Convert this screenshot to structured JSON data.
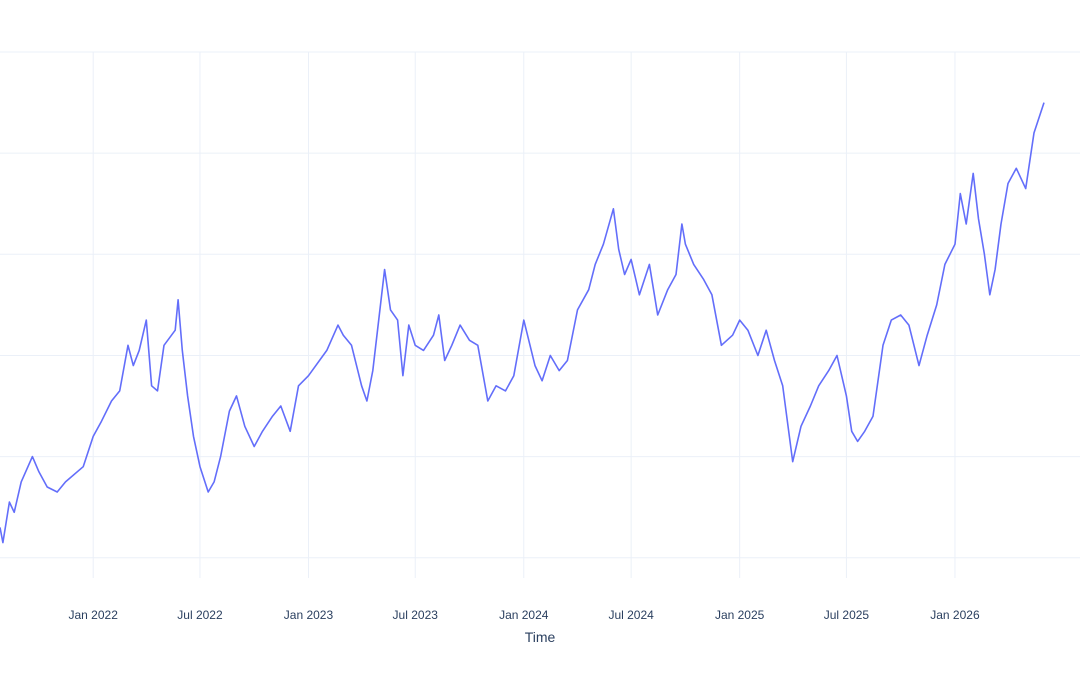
{
  "colors": {
    "background": "#ffffff",
    "grid": "#ebf0f8",
    "line": "#636efa",
    "text": "#2a3f5f"
  },
  "chart_data": {
    "type": "line",
    "title": "",
    "xlabel": "Time",
    "ylabel": "",
    "grid": true,
    "legend": "none",
    "x_tick_labels": [
      "Jan 2022",
      "Jul 2022",
      "Jan 2023",
      "Jul 2023",
      "Jan 2024",
      "Jul 2024",
      "Jan 2025",
      "Jul 2025",
      "Jan 2026"
    ],
    "x_ticks": [
      "2022-01-01",
      "2022-07-01",
      "2023-01-01",
      "2023-07-01",
      "2024-01-01",
      "2024-07-01",
      "2025-01-01",
      "2025-07-01",
      "2026-01-01"
    ],
    "xlim": [
      "2021-07-27",
      "2026-08-01"
    ],
    "ylim": [
      -2,
      50
    ],
    "y_gridlines": [
      0,
      10,
      20,
      30,
      40,
      50
    ],
    "series": [
      {
        "values": [
          [
            "2021-07-27",
            3.0
          ],
          [
            "2021-08-01",
            1.5
          ],
          [
            "2021-08-12",
            5.5
          ],
          [
            "2021-08-20",
            4.5
          ],
          [
            "2021-09-01",
            7.5
          ],
          [
            "2021-09-20",
            10.0
          ],
          [
            "2021-10-01",
            8.5
          ],
          [
            "2021-10-15",
            7.0
          ],
          [
            "2021-11-01",
            6.5
          ],
          [
            "2021-11-15",
            7.5
          ],
          [
            "2021-12-15",
            9.0
          ],
          [
            "2022-01-01",
            12.0
          ],
          [
            "2022-01-15",
            13.5
          ],
          [
            "2022-02-01",
            15.5
          ],
          [
            "2022-02-15",
            16.5
          ],
          [
            "2022-03-01",
            21.0
          ],
          [
            "2022-03-10",
            19.0
          ],
          [
            "2022-03-20",
            20.5
          ],
          [
            "2022-04-01",
            23.5
          ],
          [
            "2022-04-10",
            17.0
          ],
          [
            "2022-04-20",
            16.5
          ],
          [
            "2022-05-01",
            21.0
          ],
          [
            "2022-05-20",
            22.5
          ],
          [
            "2022-05-25",
            25.5
          ],
          [
            "2022-06-01",
            20.5
          ],
          [
            "2022-06-10",
            16.0
          ],
          [
            "2022-06-20",
            12.0
          ],
          [
            "2022-07-01",
            9.0
          ],
          [
            "2022-07-15",
            6.5
          ],
          [
            "2022-07-25",
            7.5
          ],
          [
            "2022-08-05",
            10.0
          ],
          [
            "2022-08-20",
            14.5
          ],
          [
            "2022-09-01",
            16.0
          ],
          [
            "2022-09-15",
            13.0
          ],
          [
            "2022-10-01",
            11.0
          ],
          [
            "2022-10-15",
            12.5
          ],
          [
            "2022-11-01",
            14.0
          ],
          [
            "2022-11-15",
            15.0
          ],
          [
            "2022-12-01",
            12.5
          ],
          [
            "2022-12-15",
            17.0
          ],
          [
            "2023-01-01",
            18.0
          ],
          [
            "2023-02-01",
            20.5
          ],
          [
            "2023-02-20",
            23.0
          ],
          [
            "2023-03-01",
            22.0
          ],
          [
            "2023-03-15",
            21.0
          ],
          [
            "2023-04-01",
            17.0
          ],
          [
            "2023-04-10",
            15.5
          ],
          [
            "2023-04-20",
            18.5
          ],
          [
            "2023-05-01",
            24.0
          ],
          [
            "2023-05-10",
            28.5
          ],
          [
            "2023-05-20",
            24.5
          ],
          [
            "2023-06-01",
            23.5
          ],
          [
            "2023-06-10",
            18.0
          ],
          [
            "2023-06-20",
            23.0
          ],
          [
            "2023-07-01",
            21.0
          ],
          [
            "2023-07-15",
            20.5
          ],
          [
            "2023-08-01",
            22.0
          ],
          [
            "2023-08-10",
            24.0
          ],
          [
            "2023-08-20",
            19.5
          ],
          [
            "2023-09-01",
            21.0
          ],
          [
            "2023-09-15",
            23.0
          ],
          [
            "2023-10-01",
            21.5
          ],
          [
            "2023-10-15",
            21.0
          ],
          [
            "2023-11-01",
            15.5
          ],
          [
            "2023-11-15",
            17.0
          ],
          [
            "2023-12-01",
            16.5
          ],
          [
            "2023-12-15",
            18.0
          ],
          [
            "2024-01-01",
            23.5
          ],
          [
            "2024-01-20",
            19.0
          ],
          [
            "2024-02-01",
            17.5
          ],
          [
            "2024-02-15",
            20.0
          ],
          [
            "2024-03-01",
            18.5
          ],
          [
            "2024-03-15",
            19.5
          ],
          [
            "2024-04-01",
            24.5
          ],
          [
            "2024-04-20",
            26.5
          ],
          [
            "2024-05-01",
            29.0
          ],
          [
            "2024-05-15",
            31.0
          ],
          [
            "2024-06-01",
            34.5
          ],
          [
            "2024-06-10",
            30.5
          ],
          [
            "2024-06-20",
            28.0
          ],
          [
            "2024-07-01",
            29.5
          ],
          [
            "2024-07-15",
            26.0
          ],
          [
            "2024-08-01",
            29.0
          ],
          [
            "2024-08-15",
            24.0
          ],
          [
            "2024-09-01",
            26.5
          ],
          [
            "2024-09-15",
            28.0
          ],
          [
            "2024-09-25",
            33.0
          ],
          [
            "2024-10-01",
            31.0
          ],
          [
            "2024-10-15",
            29.0
          ],
          [
            "2024-11-01",
            27.5
          ],
          [
            "2024-11-15",
            26.0
          ],
          [
            "2024-12-01",
            21.0
          ],
          [
            "2024-12-20",
            22.0
          ],
          [
            "2025-01-01",
            23.5
          ],
          [
            "2025-01-15",
            22.5
          ],
          [
            "2025-02-01",
            20.0
          ],
          [
            "2025-02-15",
            22.5
          ],
          [
            "2025-03-01",
            19.5
          ],
          [
            "2025-03-15",
            17.0
          ],
          [
            "2025-04-01",
            9.5
          ],
          [
            "2025-04-15",
            13.0
          ],
          [
            "2025-05-01",
            15.0
          ],
          [
            "2025-05-15",
            17.0
          ],
          [
            "2025-06-01",
            18.5
          ],
          [
            "2025-06-15",
            20.0
          ],
          [
            "2025-07-01",
            16.0
          ],
          [
            "2025-07-10",
            12.5
          ],
          [
            "2025-07-20",
            11.5
          ],
          [
            "2025-08-01",
            12.5
          ],
          [
            "2025-08-15",
            14.0
          ],
          [
            "2025-09-01",
            21.0
          ],
          [
            "2025-09-15",
            23.5
          ],
          [
            "2025-10-01",
            24.0
          ],
          [
            "2025-10-15",
            23.0
          ],
          [
            "2025-11-01",
            19.0
          ],
          [
            "2025-11-15",
            22.0
          ],
          [
            "2025-12-01",
            25.0
          ],
          [
            "2025-12-15",
            29.0
          ],
          [
            "2026-01-01",
            31.0
          ],
          [
            "2026-01-10",
            36.0
          ],
          [
            "2026-01-20",
            33.0
          ],
          [
            "2026-02-01",
            38.0
          ],
          [
            "2026-02-10",
            33.5
          ],
          [
            "2026-02-20",
            30.0
          ],
          [
            "2026-03-01",
            26.0
          ],
          [
            "2026-03-10",
            28.5
          ],
          [
            "2026-03-20",
            33.0
          ],
          [
            "2026-04-01",
            37.0
          ],
          [
            "2026-04-15",
            38.5
          ],
          [
            "2026-05-01",
            36.5
          ],
          [
            "2026-05-15",
            42.0
          ],
          [
            "2026-06-01",
            45.0
          ]
        ]
      }
    ]
  }
}
